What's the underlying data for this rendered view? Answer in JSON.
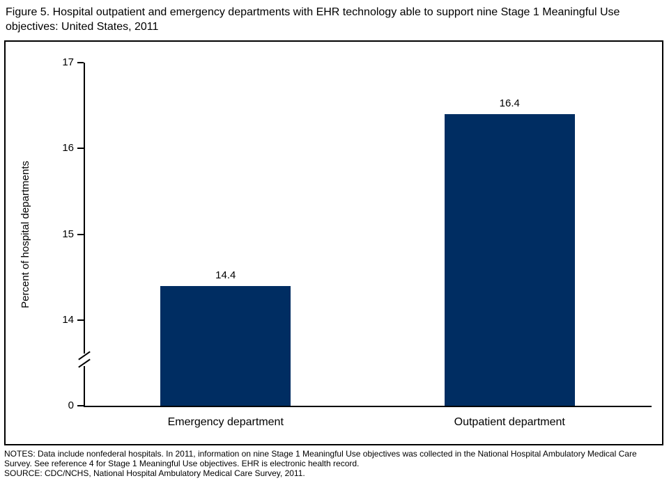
{
  "title": "Figure 5. Hospital outpatient and emergency departments with EHR technology able to support nine Stage 1 Meaningful Use objectives: United States, 2011",
  "chart_data": {
    "type": "bar",
    "categories": [
      "Emergency department",
      "Outpatient department"
    ],
    "values": [
      14.4,
      16.4
    ],
    "value_labels": [
      "14.4",
      "16.4"
    ],
    "title": "Figure 5. Hospital outpatient and emergency departments with EHR technology able to support nine Stage 1 Meaningful Use objectives: United States, 2011",
    "xlabel": "",
    "ylabel": "Percent of hospital departments",
    "yticks": [
      17,
      16,
      15,
      14,
      0
    ],
    "ylim": [
      0,
      17
    ],
    "axis_break_between": [
      0,
      14
    ],
    "grid": false,
    "legend": false,
    "bar_color": "#002d62"
  },
  "notes": "NOTES: Data include nonfederal hospitals. In 2011, information on nine Stage 1 Meaningful Use objectives was collected in the National Hospital Ambulatory Medical Care Survey. See reference 4 for Stage 1 Meaningful Use objectives. EHR is electronic health record.",
  "source": "SOURCE: CDC/NCHS, National Hospital Ambulatory Medical Care Survey, 2011."
}
